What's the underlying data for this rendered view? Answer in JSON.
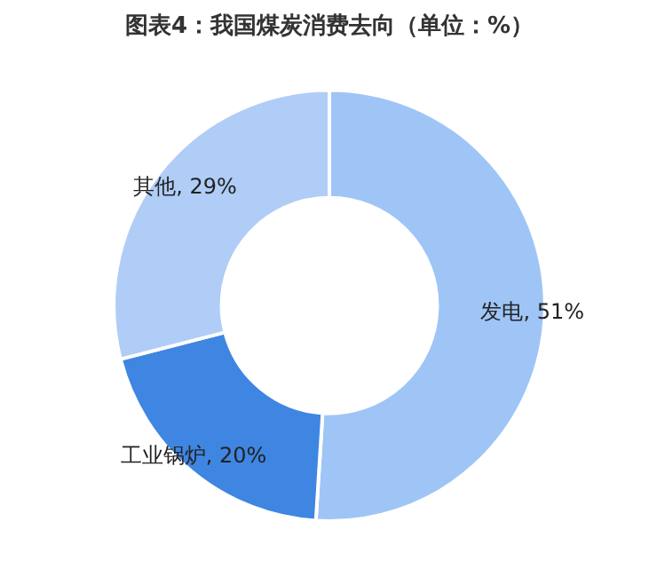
{
  "chart_data": {
    "type": "donut",
    "title": "图表4：我国煤炭消费去向（单位：%）",
    "categories": [
      "发电",
      "工业锅炉",
      "其他"
    ],
    "values": [
      51,
      20,
      29
    ],
    "colors": [
      "#9ec5f6",
      "#3f86e2",
      "#afcdf6"
    ],
    "value_labels": [
      ", 51%",
      ", 20%",
      ", 29%"
    ],
    "legend": false
  }
}
